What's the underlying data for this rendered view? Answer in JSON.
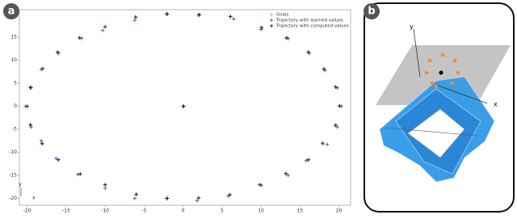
{
  "chart_data": {
    "type": "scatter",
    "xlim": [
      -21,
      21.5
    ],
    "ylim": [
      -21.5,
      21
    ],
    "xticks": [
      -20,
      -15,
      -10,
      -5,
      0,
      5,
      10,
      15,
      20
    ],
    "yticks": [
      -20,
      -15,
      -10,
      -5,
      0,
      5,
      10,
      15
    ],
    "legend": "upper right",
    "annotations": [
      "y",
      "x"
    ],
    "series": [
      {
        "name": "Goals",
        "color": "#f5a623",
        "x": [
          -2,
          2,
          6,
          10,
          13.2,
          16,
          18,
          19.5,
          20,
          19.5,
          18,
          16,
          13.2,
          10,
          6,
          2,
          -2,
          -6,
          -10,
          -13.2,
          -16,
          -18,
          -19.5,
          -20,
          -19.5,
          -18,
          -16,
          -13.2,
          -10,
          -6,
          0
        ],
        "y": [
          20,
          20,
          19.5,
          17.2,
          14.8,
          11.7,
          8.2,
          4.2,
          0,
          -4.2,
          -8.2,
          -11.7,
          -14.8,
          -17.2,
          -19.3,
          -20,
          -20,
          -19.3,
          -17.2,
          -14.8,
          -11.7,
          -8.2,
          -4.2,
          0,
          4.2,
          8.2,
          11.7,
          14.8,
          17.2,
          19.3,
          0
        ]
      },
      {
        "name": "Trajectory with learned values",
        "color": "#3355dd",
        "x": [
          -2,
          2,
          6.5,
          10,
          13.5,
          16.2,
          18.2,
          19.8,
          20.3,
          19.8,
          18.5,
          15.8,
          13.5,
          9.8,
          5.8,
          1.8,
          -2,
          -6.2,
          -10,
          -13.5,
          -16.3,
          -18.2,
          -19.5,
          -20.2,
          -19.5,
          -18.2,
          -16,
          -13,
          -10.3,
          -6.2,
          0
        ],
        "y": [
          20,
          19.8,
          19,
          16.7,
          14.7,
          11.5,
          7.8,
          4,
          0,
          -4.5,
          -8.3,
          -11.8,
          -15,
          -17,
          -19.5,
          -20.5,
          -20,
          -20,
          -17.8,
          -14.8,
          -11.3,
          -7.5,
          -4.5,
          0,
          4,
          8,
          11.5,
          14.8,
          16.5,
          18.7,
          0
        ]
      },
      {
        "name": "Trajectory with computed values",
        "color": "#222222",
        "x": [
          -2.1,
          2.1,
          6.1,
          10.1,
          13.3,
          16.1,
          18.1,
          19.6,
          20.1,
          19.6,
          17.9,
          16.1,
          13.2,
          10,
          6,
          2,
          -2.1,
          -6,
          -10,
          -13.2,
          -16,
          -18.1,
          -19.6,
          -20,
          -19.6,
          -18,
          -16.1,
          -13.3,
          -10,
          -6.1,
          0.1
        ],
        "y": [
          20.1,
          19.9,
          19.5,
          17.1,
          14.9,
          11.8,
          8.1,
          4.2,
          0.1,
          -4.1,
          -8,
          -11.6,
          -14.6,
          -17.1,
          -19.2,
          -19.9,
          -20,
          -19.1,
          -17,
          -14.7,
          -11.6,
          -8.1,
          -4,
          0,
          4.1,
          8.2,
          11.8,
          14.9,
          17.3,
          19.4,
          0
        ]
      }
    ]
  },
  "panels": {
    "a": "a",
    "b": "b"
  },
  "robot_axes": [
    "y",
    "x"
  ]
}
